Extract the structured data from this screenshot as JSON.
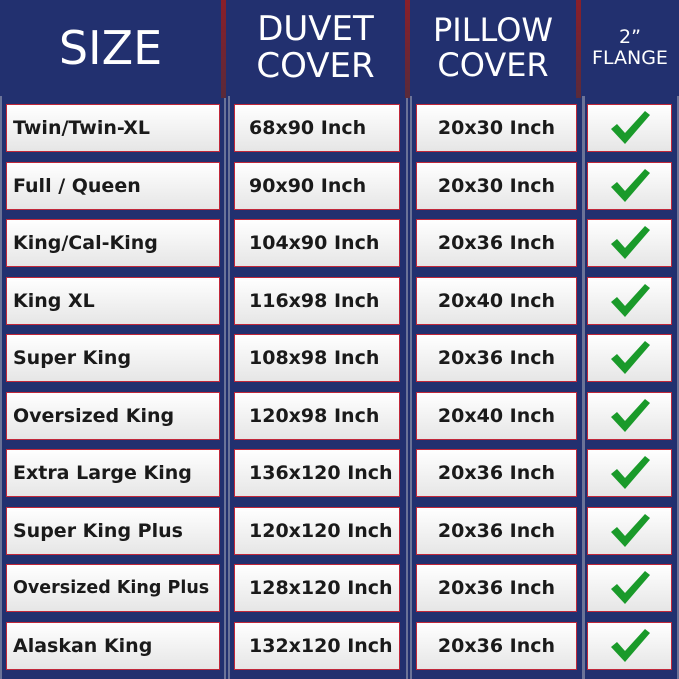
{
  "header": {
    "size": "SIZE",
    "duvet_cover": [
      "DUVET",
      "COVER"
    ],
    "pillow_cover": [
      "PILLOW",
      "COVER"
    ],
    "flange": [
      "2”",
      "FLANGE"
    ]
  },
  "table": {
    "rows": [
      [
        "Twin/Twin-XL",
        "68x90 Inch",
        "20x30 Inch"
      ],
      [
        "Full / Queen",
        "90x90 Inch",
        "20x30 Inch"
      ],
      [
        "King/Cal-King",
        "104x90 Inch",
        "20x36 Inch"
      ],
      [
        "King XL",
        "116x98 Inch",
        "20x40 Inch"
      ],
      [
        "Super King",
        "108x98 Inch",
        "20x36 Inch"
      ],
      [
        "Oversized King",
        "120x98 Inch",
        "20x40 Inch"
      ],
      [
        "Extra Large King",
        "136x120 Inch",
        "20x36 Inch"
      ],
      [
        "Super King Plus",
        "120x120 Inch",
        "20x36 Inch"
      ],
      [
        "Oversized King Plus",
        "128x120 Inch",
        "20x36 Inch"
      ],
      [
        "Alaskan King",
        "132x120 Inch",
        "20x36 Inch"
      ]
    ]
  }
}
